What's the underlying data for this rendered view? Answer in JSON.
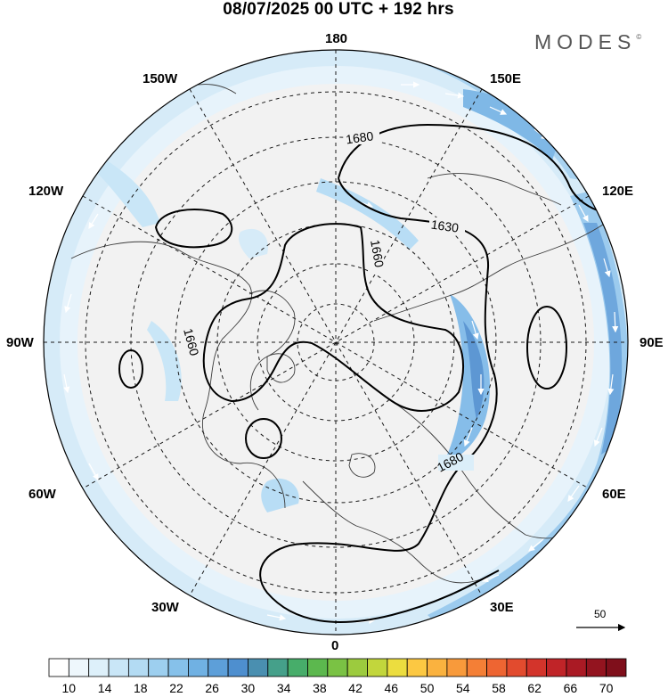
{
  "header": {
    "title": "08/07/2025  00 UTC  + 192 hrs",
    "brand": "MODES",
    "brand_mark": "©"
  },
  "map": {
    "projection": "north polar stereographic",
    "longitude_labels": {
      "lon_180": "180",
      "lon_150w": "150W",
      "lon_150e": "150E",
      "lon_120w": "120W",
      "lon_120e": "120E",
      "lon_90w": "90W",
      "lon_90e": "90E",
      "lon_60w": "60W",
      "lon_60e": "60E",
      "lon_30w": "30W",
      "lon_30e": "30E",
      "lon_0": "0"
    },
    "contour_labels": [
      "1680",
      "1630",
      "1660",
      "1660",
      "1680"
    ],
    "contour_line_color": "#000000",
    "coastline_color": "#3c3c3c",
    "land_color": "#f2f2f2",
    "graticule_style": "dashed"
  },
  "vector_scale": {
    "label": "50"
  },
  "colorbar": {
    "labels": [
      "10",
      "14",
      "18",
      "22",
      "26",
      "30",
      "34",
      "38",
      "42",
      "46",
      "50",
      "54",
      "58",
      "62",
      "66",
      "70"
    ],
    "colors": [
      "#ffffff",
      "#eef7fc",
      "#ddf0fa",
      "#c9e6f7",
      "#b3dbf3",
      "#9dcfef",
      "#86c1ea",
      "#70b1e3",
      "#5d9fd9",
      "#4e8fcf",
      "#4a8fb0",
      "#45a08a",
      "#47ad6a",
      "#5cb84e",
      "#7ac244",
      "#9ccb3e",
      "#c2d63c",
      "#ecdd3f",
      "#fcc842",
      "#fab23f",
      "#f89a3b",
      "#f47f36",
      "#ee6532",
      "#e24b2e",
      "#d3342b",
      "#c02428",
      "#aa1a24",
      "#93141f",
      "#7f0f1b"
    ]
  }
}
